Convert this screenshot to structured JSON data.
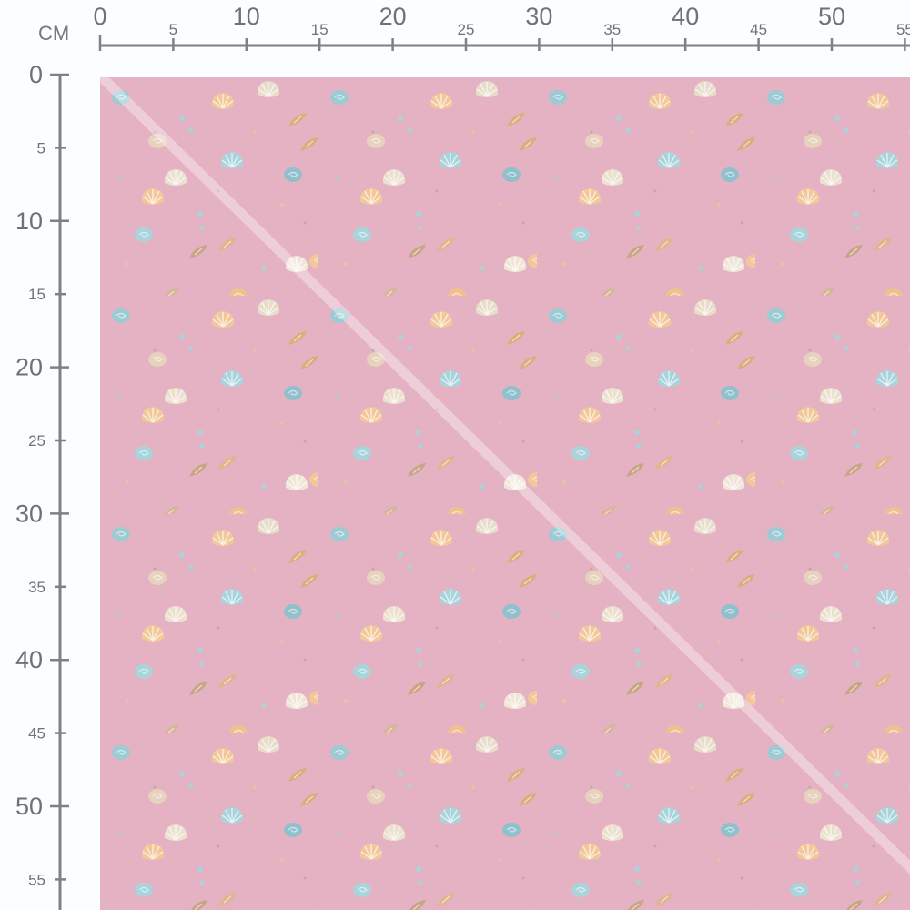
{
  "ruler": {
    "unit": "CM",
    "top_labels": [
      "0",
      "5",
      "10",
      "15",
      "20",
      "25",
      "30",
      "35",
      "40",
      "45",
      "50",
      "55"
    ],
    "left_labels": [
      "0",
      "5",
      "10",
      "15",
      "20",
      "25",
      "30",
      "35",
      "40",
      "45",
      "50",
      "55"
    ],
    "color": "#7a8288"
  },
  "fabric": {
    "pattern": "seashells",
    "background_color": "#e4b2c2",
    "shell_colors": [
      "#f2c89a",
      "#a9d4dc",
      "#e8dccb",
      "#d9ae7c"
    ],
    "highlight_stripe": "diagonal"
  }
}
